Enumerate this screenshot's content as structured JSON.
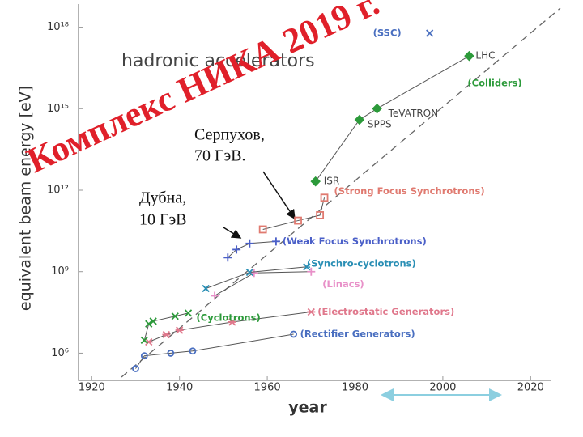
{
  "chart_data": {
    "type": "line",
    "title": "hadronic accelerators",
    "xlabel": "year",
    "ylabel": "equivalent beam energy [eV]",
    "log_y": true,
    "xlim": [
      1917,
      2024
    ],
    "xticks": [
      1920,
      1940,
      1960,
      1980,
      2000,
      2020
    ],
    "ylim": [
      100000,
      1e+19
    ],
    "yticks": [
      {
        "value": 1000000,
        "label": "10⁶"
      },
      {
        "value": 1000000000,
        "label": "10⁹"
      },
      {
        "value": 1000000000000,
        "label": "10¹²"
      },
      {
        "value": 1000000000000000.0,
        "label": "10¹⁵"
      },
      {
        "value": 1e+18,
        "label": "10¹⁸"
      }
    ],
    "series": [
      {
        "name": "(Rectifier Generators)",
        "color": "#4a6fc0",
        "marker": "circle",
        "x": [
          1930,
          1932,
          1938,
          1943,
          1966
        ],
        "values": [
          270000,
          800000,
          1000000,
          1200000,
          5000000
        ]
      },
      {
        "name": "(Electrostatic Generators)",
        "color": "#e0788c",
        "marker": "star",
        "x": [
          1933,
          1937,
          1940,
          1952,
          1970
        ],
        "values": [
          2600000,
          4800000,
          7000000,
          14000000,
          33000000
        ]
      },
      {
        "name": "(Cyclotrons)",
        "color": "#2c9a3a",
        "marker": "x",
        "x": [
          1932,
          1933,
          1934,
          1939,
          1942
        ],
        "values": [
          3000000,
          12000000,
          15000000,
          23000000,
          30000000
        ]
      },
      {
        "name": "(Linacs)",
        "color": "#e890c8",
        "marker": "plus",
        "x": [
          1948,
          1957,
          1970
        ],
        "values": [
          130000000,
          900000000,
          1000000000
        ]
      },
      {
        "name": "(Synchro-cyclotrons)",
        "color": "#2a8fb5",
        "marker": "x",
        "x": [
          1946,
          1956,
          1969
        ],
        "values": [
          240000000,
          950000000,
          1500000000
        ]
      },
      {
        "name": "(Weak Focus Synchrotrons)",
        "color": "#4a5fc8",
        "marker": "plus",
        "x": [
          1951,
          1953,
          1956,
          1962
        ],
        "values": [
          3300000000,
          6500000000,
          11000000000,
          13000000000
        ]
      },
      {
        "name": "(Strong Focus Synchrotrons)",
        "color": "#e07a70",
        "marker": "square",
        "x": [
          1959,
          1967,
          1972,
          1973
        ],
        "values": [
          36000000000,
          76000000000,
          120000000000,
          530000000000
        ]
      },
      {
        "name": "(Colliders)",
        "color": "#2c9a3a",
        "marker": "diamond",
        "x": [
          1971,
          1981,
          1985,
          2006
        ],
        "values": [
          2100000000000,
          390000000000000,
          1000000000000000.0,
          8.7e+16
        ],
        "point_labels": [
          "ISR",
          "SPPS",
          "TeVATRON",
          "LHC"
        ]
      },
      {
        "name": "(SSC)",
        "color": "#4a6fc0",
        "marker": "x",
        "x": [
          1997
        ],
        "values": [
          6e+17
        ]
      }
    ],
    "annotations": [
      "Комплекс НИКА 2019 г.",
      "Серпухов,",
      "70 ГэВ.",
      "Дубна,",
      "10 ГэВ"
    ]
  }
}
